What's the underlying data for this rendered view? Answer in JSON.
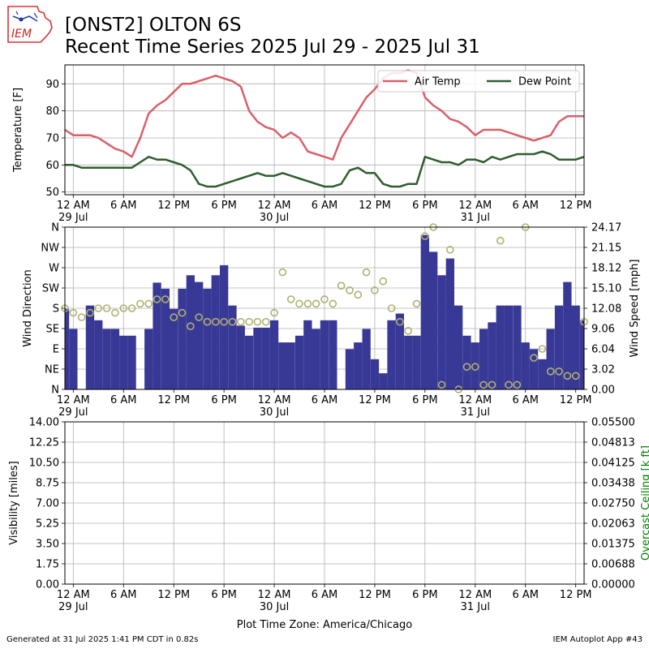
{
  "title_line1": "[ONST2] OLTON 6S",
  "title_line2": "Recent Time Series 2025 Jul 29 - 2025 Jul 31",
  "footer_left": "Generated at 31 Jul 2025 1:41 PM CDT in 0.82s",
  "footer_right": "IEM Autoplot App #43",
  "logo_text": "IEM",
  "timezone_label": "Plot Time Zone: America/Chicago",
  "colors": {
    "air_temp": "#d9606a",
    "dew_point": "#2e5e2e",
    "wind_speed_bar": "#383896",
    "wind_dir_marker": "#b0b070",
    "ceiling_label": "#008000",
    "grid": "#b0b0b0"
  },
  "x_axis": {
    "range_hours": [
      -1,
      61
    ],
    "ticks": [
      {
        "h": 0,
        "label": "12 AM",
        "sub": "29 Jul"
      },
      {
        "h": 6,
        "label": "6 AM",
        "sub": ""
      },
      {
        "h": 12,
        "label": "12 PM",
        "sub": ""
      },
      {
        "h": 18,
        "label": "6 PM",
        "sub": ""
      },
      {
        "h": 24,
        "label": "12 AM",
        "sub": "30 Jul"
      },
      {
        "h": 30,
        "label": "6 AM",
        "sub": ""
      },
      {
        "h": 36,
        "label": "12 PM",
        "sub": ""
      },
      {
        "h": 42,
        "label": "6 PM",
        "sub": ""
      },
      {
        "h": 48,
        "label": "12 AM",
        "sub": "31 Jul"
      },
      {
        "h": 54,
        "label": "6 AM",
        "sub": ""
      },
      {
        "h": 60,
        "label": "12 PM",
        "sub": ""
      }
    ]
  },
  "chart_data": [
    {
      "type": "line",
      "ylabel": "Temperature [F]",
      "ylim": [
        49,
        97
      ],
      "yticks": [
        50,
        60,
        70,
        80,
        90
      ],
      "grid": true,
      "legend": "top-right",
      "series": [
        {
          "name": "Air Temp",
          "x": [
            -1,
            0,
            1,
            2,
            3,
            4,
            5,
            6,
            7,
            8,
            9,
            10,
            11,
            12,
            13,
            14,
            15,
            16,
            17,
            18,
            19,
            20,
            21,
            22,
            23,
            24,
            25,
            26,
            27,
            28,
            29,
            30,
            31,
            32,
            33,
            34,
            35,
            36,
            37,
            38,
            39,
            40,
            41,
            42,
            43,
            44,
            45,
            46,
            47,
            48,
            49,
            50,
            51,
            52,
            53,
            54,
            55,
            56,
            57,
            58,
            59,
            60,
            61
          ],
          "y": [
            73,
            71,
            71,
            71,
            70,
            68,
            66,
            65,
            63,
            70,
            79,
            82,
            84,
            87,
            90,
            90,
            91,
            92,
            93,
            92,
            91,
            89,
            80,
            76,
            74,
            73,
            70,
            72,
            70,
            65,
            64,
            63,
            62,
            70,
            75,
            80,
            85,
            88,
            92,
            94,
            94,
            95,
            94,
            85,
            82,
            80,
            77,
            76,
            74,
            71,
            73,
            73,
            73,
            72,
            71,
            70,
            69,
            70,
            71,
            76,
            78,
            78,
            78
          ]
        },
        {
          "name": "Dew Point",
          "x": [
            -1,
            0,
            1,
            2,
            3,
            4,
            5,
            6,
            7,
            8,
            9,
            10,
            11,
            12,
            13,
            14,
            15,
            16,
            17,
            18,
            19,
            20,
            21,
            22,
            23,
            24,
            25,
            26,
            27,
            28,
            29,
            30,
            31,
            32,
            33,
            34,
            35,
            36,
            37,
            38,
            39,
            40,
            41,
            42,
            43,
            44,
            45,
            46,
            47,
            48,
            49,
            50,
            51,
            52,
            53,
            54,
            55,
            56,
            57,
            58,
            59,
            60,
            61
          ],
          "y": [
            60,
            60,
            59,
            59,
            59,
            59,
            59,
            59,
            59,
            61,
            63,
            62,
            62,
            61,
            60,
            58,
            53,
            52,
            52,
            53,
            54,
            55,
            56,
            57,
            56,
            56,
            57,
            56,
            55,
            54,
            53,
            52,
            52,
            53,
            58,
            59,
            57,
            57,
            53,
            52,
            52,
            53,
            53,
            63,
            62,
            61,
            61,
            60,
            62,
            62,
            61,
            63,
            62,
            63,
            64,
            64,
            64,
            65,
            64,
            62,
            62,
            62,
            63
          ]
        }
      ]
    },
    {
      "type": "bar",
      "ylabel": "Wind Direction",
      "y2label": "Wind Speed [mph]",
      "ylim": [
        0,
        360
      ],
      "y2lim": [
        0,
        24.17
      ],
      "yticks_deg": [
        0,
        45,
        90,
        135,
        180,
        225,
        270,
        315,
        360
      ],
      "ytick_labels": [
        "N",
        "NE",
        "E",
        "SE",
        "S",
        "SW",
        "W",
        "NW",
        "N"
      ],
      "y2ticks": [
        "0.00",
        "3.02",
        "6.04",
        "9.06",
        "12.08",
        "15.10",
        "18.12",
        "21.15",
        "24.17"
      ],
      "grid": true,
      "series": [
        {
          "name": "Wind Speed",
          "x": [
            -1,
            0,
            1,
            2,
            3,
            4,
            5,
            6,
            7,
            8,
            9,
            10,
            11,
            12,
            13,
            14,
            15,
            16,
            17,
            18,
            19,
            20,
            21,
            22,
            23,
            24,
            25,
            26,
            27,
            28,
            29,
            30,
            31,
            32,
            33,
            34,
            35,
            36,
            37,
            38,
            39,
            40,
            41,
            42,
            43,
            44,
            45,
            46,
            47,
            48,
            49,
            50,
            51,
            52,
            53,
            54,
            55,
            56,
            57,
            58,
            59,
            60,
            61
          ],
          "y": [
            12,
            9,
            0,
            12.5,
            10.3,
            9,
            9,
            8,
            8,
            0,
            9,
            15.9,
            15,
            12,
            15,
            17,
            16,
            15,
            17,
            18.5,
            12.5,
            9.5,
            8,
            9.2,
            9.2,
            10.3,
            7,
            7,
            8,
            10.3,
            9,
            10.3,
            10.3,
            0,
            6,
            7,
            9,
            4.5,
            2.4,
            10.3,
            11.3,
            8,
            8,
            23,
            20.5,
            17,
            19.5,
            12.5,
            8,
            7,
            9,
            10,
            12.5,
            12.5,
            12.5,
            7,
            6,
            4.5,
            9,
            12.5,
            16,
            12.5,
            10.3
          ]
        },
        {
          "name": "Wind Direction",
          "x": [
            -1,
            0,
            1,
            2,
            3,
            4,
            5,
            6,
            7,
            8,
            9,
            10,
            11,
            12,
            13,
            14,
            15,
            16,
            17,
            18,
            19,
            20,
            21,
            22,
            23,
            24,
            25,
            26,
            27,
            28,
            29,
            30,
            31,
            32,
            33,
            34,
            35,
            36,
            37,
            38,
            39,
            40,
            41,
            42,
            43,
            44,
            45,
            46,
            47,
            48,
            49,
            50,
            51,
            52,
            53,
            54,
            55,
            56,
            57,
            58,
            59,
            60,
            61
          ],
          "y": [
            180,
            170,
            160,
            170,
            180,
            180,
            170,
            180,
            180,
            190,
            190,
            200,
            200,
            160,
            170,
            140,
            160,
            150,
            150,
            150,
            150,
            150,
            150,
            150,
            150,
            170,
            260,
            200,
            190,
            190,
            190,
            200,
            190,
            230,
            220,
            210,
            260,
            220,
            240,
            180,
            150,
            130,
            190,
            340,
            360,
            10,
            310,
            0,
            50,
            50,
            10,
            10,
            330,
            10,
            10,
            360,
            70,
            90,
            40,
            40,
            30,
            30,
            150
          ]
        }
      ]
    },
    {
      "type": "line",
      "ylabel": "Visibility [miles]",
      "y2label": "Overcast Ceiling [k ft]",
      "ylim": [
        0,
        14
      ],
      "y2lim": [
        0,
        0.055
      ],
      "yticks": [
        "0.00",
        "1.75",
        "3.50",
        "5.25",
        "7.00",
        "8.75",
        "10.50",
        "12.25",
        "14.00"
      ],
      "y2ticks": [
        "0.00000",
        "0.00688",
        "0.01375",
        "0.02063",
        "0.02750",
        "0.03438",
        "0.04125",
        "0.04813",
        "0.05500"
      ],
      "grid": true,
      "series": []
    }
  ]
}
